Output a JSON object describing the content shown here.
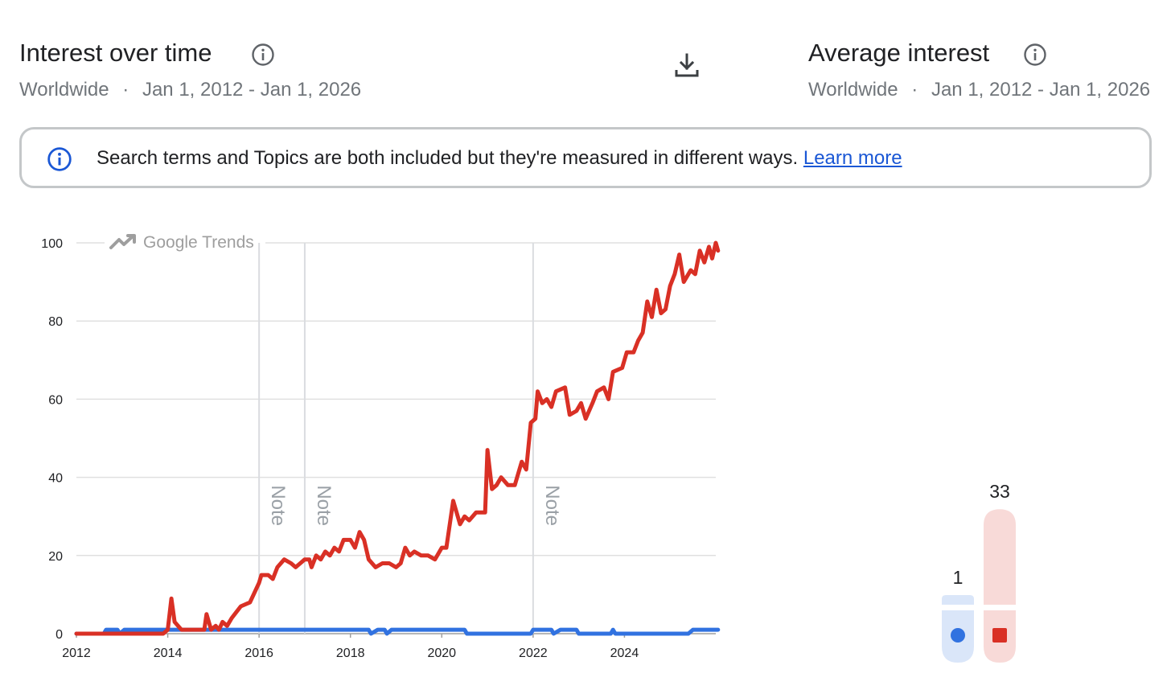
{
  "header_left": {
    "title": "Interest over time",
    "region": "Worldwide",
    "separator": "·",
    "date_range": "Jan 1, 2012 - Jan 1, 2026"
  },
  "header_right": {
    "title": "Average interest",
    "region": "Worldwide",
    "separator": "·",
    "date_range": "Jan 1, 2012 - Jan 1, 2026"
  },
  "banner": {
    "text": "Search terms and Topics are both included but they're measured in different ways.",
    "link": "Learn more"
  },
  "watermark": "Google Trends",
  "note_label": "Note",
  "icons": {
    "info": "info-icon",
    "download": "download-icon",
    "watermark": "trending-up-icon"
  },
  "colors": {
    "series_red": "#d93025",
    "series_blue": "#3172e0",
    "link": "#1a57d5"
  },
  "chart_data": [
    {
      "type": "line",
      "xlim": [
        2012,
        2026
      ],
      "ylim": [
        0,
        100
      ],
      "xticks": [
        2012,
        2014,
        2016,
        2018,
        2020,
        2022,
        2024
      ],
      "yticks": [
        0,
        20,
        40,
        60,
        80,
        100
      ],
      "grid": true,
      "annotations": [
        {
          "x": 2016.0,
          "label": "Note"
        },
        {
          "x": 2017.0,
          "label": "Note"
        },
        {
          "x": 2022.0,
          "label": "Note"
        }
      ],
      "series": [
        {
          "color": "#d93025",
          "points": [
            [
              2012.0,
              0
            ],
            [
              2013.0,
              0
            ],
            [
              2013.5,
              0
            ],
            [
              2013.9,
              0
            ],
            [
              2014.0,
              1
            ],
            [
              2014.08,
              9
            ],
            [
              2014.15,
              3
            ],
            [
              2014.3,
              1
            ],
            [
              2014.6,
              1
            ],
            [
              2014.8,
              1
            ],
            [
              2014.85,
              5
            ],
            [
              2014.95,
              1
            ],
            [
              2015.05,
              2
            ],
            [
              2015.12,
              1
            ],
            [
              2015.2,
              3
            ],
            [
              2015.3,
              2
            ],
            [
              2015.4,
              4
            ],
            [
              2015.6,
              7
            ],
            [
              2015.8,
              8
            ],
            [
              2016.0,
              13
            ],
            [
              2016.05,
              15
            ],
            [
              2016.2,
              15
            ],
            [
              2016.3,
              14
            ],
            [
              2016.4,
              17
            ],
            [
              2016.55,
              19
            ],
            [
              2016.7,
              18
            ],
            [
              2016.8,
              17
            ],
            [
              2016.9,
              18
            ],
            [
              2017.0,
              19
            ],
            [
              2017.1,
              19
            ],
            [
              2017.15,
              17
            ],
            [
              2017.25,
              20
            ],
            [
              2017.35,
              19
            ],
            [
              2017.45,
              21
            ],
            [
              2017.55,
              20
            ],
            [
              2017.65,
              22
            ],
            [
              2017.75,
              21
            ],
            [
              2017.85,
              24
            ],
            [
              2018.0,
              24
            ],
            [
              2018.1,
              22
            ],
            [
              2018.2,
              26
            ],
            [
              2018.3,
              24
            ],
            [
              2018.4,
              19
            ],
            [
              2018.55,
              17
            ],
            [
              2018.7,
              18
            ],
            [
              2018.85,
              18
            ],
            [
              2019.0,
              17
            ],
            [
              2019.1,
              18
            ],
            [
              2019.2,
              22
            ],
            [
              2019.3,
              20
            ],
            [
              2019.4,
              21
            ],
            [
              2019.55,
              20
            ],
            [
              2019.7,
              20
            ],
            [
              2019.85,
              19
            ],
            [
              2020.0,
              22
            ],
            [
              2020.1,
              22
            ],
            [
              2020.25,
              34
            ],
            [
              2020.4,
              28
            ],
            [
              2020.5,
              30
            ],
            [
              2020.6,
              29
            ],
            [
              2020.75,
              31
            ],
            [
              2020.95,
              31
            ],
            [
              2021.0,
              47
            ],
            [
              2021.1,
              37
            ],
            [
              2021.2,
              38
            ],
            [
              2021.3,
              40
            ],
            [
              2021.45,
              38
            ],
            [
              2021.6,
              38
            ],
            [
              2021.75,
              44
            ],
            [
              2021.85,
              42
            ],
            [
              2021.95,
              54
            ],
            [
              2022.05,
              55
            ],
            [
              2022.1,
              62
            ],
            [
              2022.2,
              59
            ],
            [
              2022.3,
              60
            ],
            [
              2022.4,
              58
            ],
            [
              2022.5,
              62
            ],
            [
              2022.7,
              63
            ],
            [
              2022.8,
              56
            ],
            [
              2022.95,
              57
            ],
            [
              2023.05,
              59
            ],
            [
              2023.15,
              55
            ],
            [
              2023.3,
              59
            ],
            [
              2023.4,
              62
            ],
            [
              2023.55,
              63
            ],
            [
              2023.65,
              60
            ],
            [
              2023.75,
              67
            ],
            [
              2023.95,
              68
            ],
            [
              2024.05,
              72
            ],
            [
              2024.2,
              72
            ],
            [
              2024.3,
              75
            ],
            [
              2024.4,
              77
            ],
            [
              2024.5,
              85
            ],
            [
              2024.6,
              81
            ],
            [
              2024.7,
              88
            ],
            [
              2024.8,
              82
            ],
            [
              2024.9,
              83
            ],
            [
              2025.0,
              89
            ],
            [
              2025.1,
              92
            ],
            [
              2025.2,
              97
            ],
            [
              2025.3,
              90
            ],
            [
              2025.45,
              93
            ],
            [
              2025.55,
              92
            ],
            [
              2025.65,
              98
            ],
            [
              2025.75,
              95
            ],
            [
              2025.85,
              99
            ],
            [
              2025.92,
              96
            ],
            [
              2026.0,
              100
            ],
            [
              2026.05,
              98
            ]
          ]
        },
        {
          "color": "#3172e0",
          "points": [
            [
              2012.0,
              0
            ],
            [
              2012.6,
              0
            ],
            [
              2012.65,
              1
            ],
            [
              2012.9,
              1
            ],
            [
              2012.95,
              0
            ],
            [
              2013.05,
              1
            ],
            [
              2013.5,
              1
            ],
            [
              2014.0,
              1
            ],
            [
              2016.0,
              1
            ],
            [
              2018.0,
              1
            ],
            [
              2018.4,
              1
            ],
            [
              2018.45,
              0
            ],
            [
              2018.6,
              1
            ],
            [
              2018.75,
              1
            ],
            [
              2018.8,
              0
            ],
            [
              2018.9,
              1
            ],
            [
              2019.5,
              1
            ],
            [
              2020.5,
              1
            ],
            [
              2020.55,
              0
            ],
            [
              2021.0,
              0
            ],
            [
              2021.95,
              0
            ],
            [
              2022.0,
              1
            ],
            [
              2022.4,
              1
            ],
            [
              2022.45,
              0
            ],
            [
              2022.6,
              1
            ],
            [
              2022.95,
              1
            ],
            [
              2023.0,
              0
            ],
            [
              2023.7,
              0
            ],
            [
              2023.75,
              1
            ],
            [
              2023.8,
              0
            ],
            [
              2024.5,
              0
            ],
            [
              2025.4,
              0
            ],
            [
              2025.5,
              1
            ],
            [
              2026.05,
              1
            ]
          ]
        }
      ]
    },
    {
      "type": "bar",
      "categories": [
        "",
        ""
      ],
      "values": [
        1,
        33
      ],
      "ylim": [
        0,
        100
      ],
      "colors": [
        "#3172e0",
        "#d93025"
      ],
      "data_labels": [
        "1",
        "33"
      ]
    }
  ]
}
